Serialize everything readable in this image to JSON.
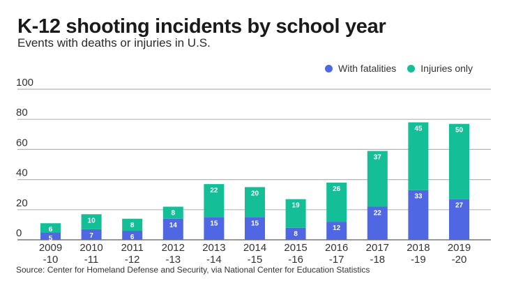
{
  "header": {
    "title": "K-12 shooting incidents by school year",
    "subtitle": "Events with deaths or injuries in U.S."
  },
  "legend": [
    {
      "label": "With fatalities",
      "color": "#4f67e3"
    },
    {
      "label": "Injuries only",
      "color": "#14bf98"
    }
  ],
  "source": "Source: Center for Homeland Defense and Security, via National Center for Education Statistics",
  "chart_data": {
    "type": "bar",
    "stacked": true,
    "title": "K-12 shooting incidents by school year",
    "subtitle": "Events with deaths or injuries in U.S.",
    "xlabel": "",
    "ylabel": "",
    "ylim": [
      0,
      100
    ],
    "yticks": [
      0,
      20,
      40,
      60,
      80,
      100
    ],
    "grid": true,
    "legend_position": "top-right",
    "categories": [
      [
        "2009",
        "-10"
      ],
      [
        "2010",
        "-11"
      ],
      [
        "2011",
        "-12"
      ],
      [
        "2012",
        "-13"
      ],
      [
        "2013",
        "-14"
      ],
      [
        "2014",
        "-15"
      ],
      [
        "2015",
        "-16"
      ],
      [
        "2016",
        "-17"
      ],
      [
        "2017",
        "-18"
      ],
      [
        "2018",
        "-19"
      ],
      [
        "2019",
        "-20"
      ]
    ],
    "series": [
      {
        "name": "With fatalities",
        "color": "#4f67e3",
        "values": [
          5,
          7,
          6,
          14,
          15,
          15,
          8,
          12,
          22,
          33,
          27
        ]
      },
      {
        "name": "Injuries only",
        "color": "#14bf98",
        "values": [
          6,
          10,
          8,
          8,
          22,
          20,
          19,
          26,
          37,
          45,
          50
        ]
      }
    ],
    "source": "Source: Center for Homeland Defense and Security, via National Center for Education Statistics"
  }
}
